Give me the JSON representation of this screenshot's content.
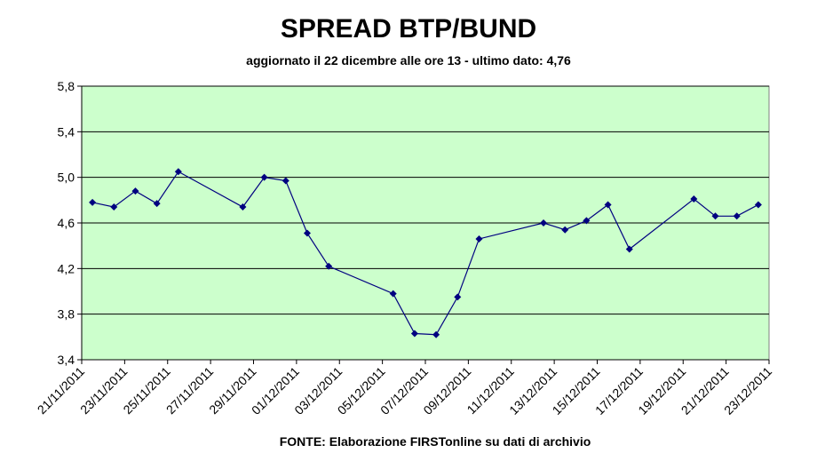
{
  "chart_data": {
    "type": "line",
    "title": "SPREAD BTP/BUND",
    "subtitle": "aggiornato il 22 dicembre alle ore 13 - ultimo dato: 4,76",
    "source": "FONTE: Elaborazione FIRSTonline su dati di archivio",
    "x": [
      "21/11/2011",
      "22/11/2011",
      "23/11/2011",
      "24/11/2011",
      "25/11/2011",
      "28/11/2011",
      "29/11/2011",
      "30/11/2011",
      "01/12/2011",
      "02/12/2011",
      "05/12/2011",
      "06/12/2011",
      "07/12/2011",
      "08/12/2011",
      "09/12/2011",
      "12/12/2011",
      "13/12/2011",
      "14/12/2011",
      "15/12/2011",
      "16/12/2011",
      "19/12/2011",
      "20/12/2011",
      "21/12/2011",
      "22/12/2011"
    ],
    "series": [
      {
        "color": "#000080",
        "values": [
          4.78,
          4.74,
          4.88,
          4.77,
          5.05,
          4.74,
          5.0,
          4.97,
          4.51,
          4.22,
          3.98,
          3.63,
          3.62,
          3.95,
          4.46,
          4.6,
          4.54,
          4.62,
          4.76,
          4.37,
          4.81,
          4.66,
          4.66,
          4.76
        ]
      }
    ],
    "xlim": [
      "21/11/2011",
      "23/12/2011"
    ],
    "xticks": [
      "21/11/2011",
      "23/11/2011",
      "25/11/2011",
      "27/11/2011",
      "29/11/2011",
      "01/12/2011",
      "03/12/2011",
      "05/12/2011",
      "07/12/2011",
      "09/12/2011",
      "11/12/2011",
      "13/12/2011",
      "15/12/2011",
      "17/12/2011",
      "19/12/2011",
      "21/12/2011",
      "23/12/2011"
    ],
    "ylim": [
      3.4,
      5.8
    ],
    "yticks": [
      {
        "value": 3.4,
        "label": "3,4"
      },
      {
        "value": 3.8,
        "label": "3,8"
      },
      {
        "value": 4.2,
        "label": "4,2"
      },
      {
        "value": 4.6,
        "label": "4,6"
      },
      {
        "value": 5.0,
        "label": "5,0"
      },
      {
        "value": 5.4,
        "label": "5,4"
      },
      {
        "value": 5.8,
        "label": "5,8"
      }
    ],
    "grid": true,
    "background": "#ccffcc"
  }
}
